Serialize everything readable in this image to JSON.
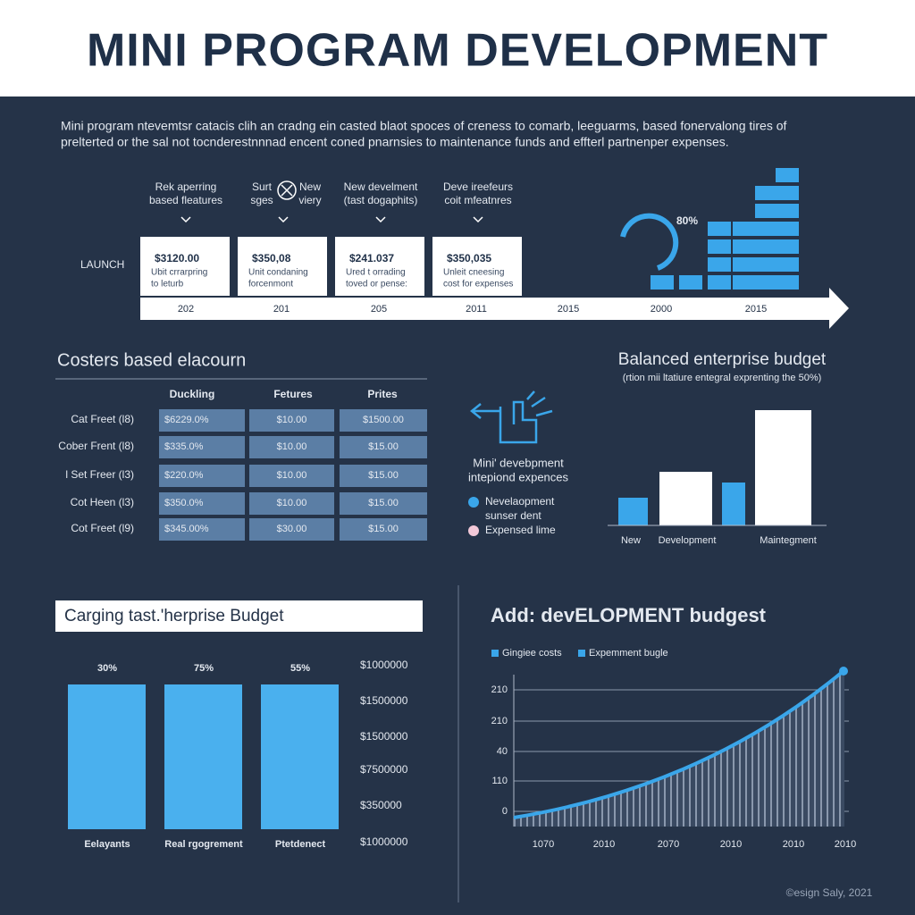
{
  "header": {
    "title": "MINI PROGRAM DEVELOPMENT"
  },
  "intro": [
    "Mini program ntevemtsr catacis clih an cradng ein casted blaot spoces of creness to comarb, leeguarms, based fonervalong tires of",
    "prelterted or the sal not tocnderestnnnad encent coned pnarnsies to maintenance funds and effterl partnenper expenses."
  ],
  "timeline": {
    "start_label": "LAUNCH",
    "gauge_label": "80%",
    "steps": [
      {
        "heading": [
          "Rek aperring",
          "based fleatures"
        ],
        "value": "$3120.00",
        "text": [
          "Ubit crrarpring",
          "to leturb"
        ]
      },
      {
        "heading": [
          "Surt",
          "New",
          "sges",
          "viery"
        ],
        "value": "$350,08",
        "text": [
          "Unit condaning",
          "forcenmont"
        ]
      },
      {
        "heading": [
          "New develment",
          "(tast dogaphits)"
        ],
        "value": "$241.037",
        "text": [
          "Ured t orrading",
          "toved or pense:"
        ]
      },
      {
        "heading": [
          "Deve ireefeurs",
          "coit mfeatnres"
        ],
        "value": "$350,035",
        "text": [
          "Unleit cneesing",
          "cost for expenses"
        ]
      }
    ],
    "years": [
      "202",
      "201",
      "205",
      "2011",
      "2015",
      "2000",
      "2015"
    ]
  },
  "table": {
    "title": "Costers based elacourn",
    "columns": [
      "Duckling",
      "Fetures",
      "Prites"
    ],
    "rows": [
      [
        "Cat Freet (l8)",
        "$6229.0%",
        "$10.00",
        "$1500.00"
      ],
      [
        "Cober Frent (l8)",
        "$335.0%",
        "$10.00",
        "$15.00"
      ],
      [
        "l Set Freer (l3)",
        "$220.0%",
        "$10.00",
        "$15.00"
      ],
      [
        "Cot Heen (l3)",
        "$350.0%",
        "$10.00",
        "$15.00"
      ],
      [
        "Cot Freet (l9)",
        "$345.00%",
        "$30.00",
        "$15.00"
      ]
    ]
  },
  "middle": {
    "caption": [
      "Mini' devebpment",
      "intepiond expences"
    ],
    "legend": [
      [
        "Nevelaopment",
        "sunser dent"
      ],
      [
        "Expensed lime"
      ]
    ]
  },
  "balanced": {
    "title": "Balanced enterprise budget",
    "subtitle": "(rtion mii ltatiure entegral exprenting the 50%)",
    "labels": [
      "New",
      "Development",
      "Maintegment"
    ]
  },
  "charging": {
    "title": "Carging tast.'herprise Budget",
    "percents": [
      "30%",
      "75%",
      "55%"
    ],
    "categories": [
      "Eelayants",
      "Real rgogrement",
      "Ptetdenect"
    ],
    "axis": [
      "$1000000",
      "$1500000",
      "$1500000",
      "$7500000",
      "$350000",
      "$1000000"
    ]
  },
  "growth": {
    "title": "Add: devELOPMENT budgest",
    "legend": [
      "Gingiee costs",
      "Expemment bugle"
    ],
    "y_labels": [
      "210",
      "210",
      "40",
      "110",
      "0"
    ],
    "x_labels": [
      "1070",
      "2010",
      "2070",
      "2010",
      "2010",
      "2010"
    ]
  },
  "footer": "©esign Saly, 2021"
}
